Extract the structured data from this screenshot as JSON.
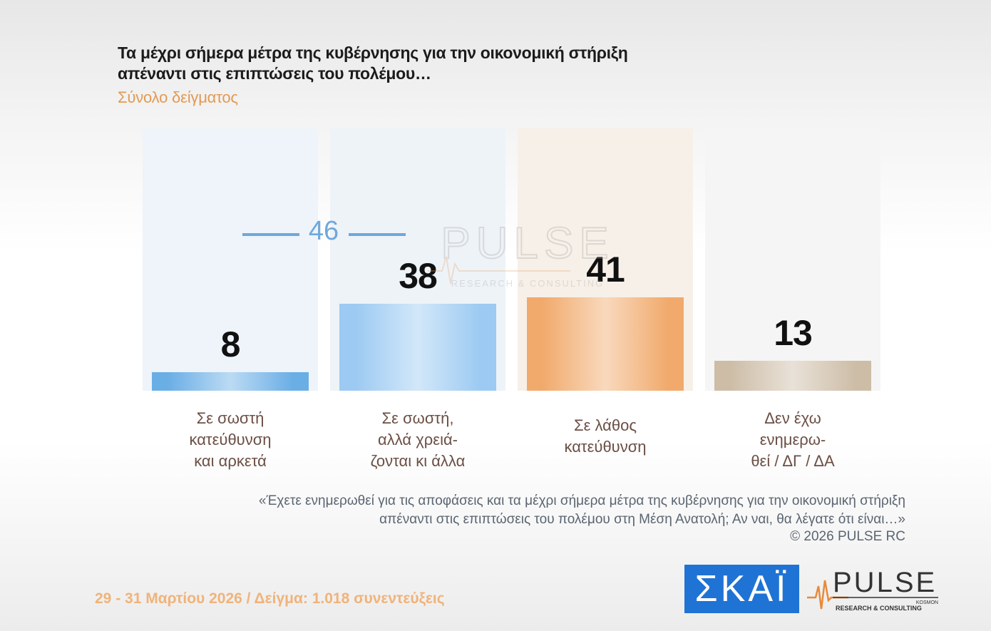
{
  "title_lines": [
    "Τα μέχρι σήμερα μέτρα της κυβέρνησης για την οικονομική στήριξη",
    "απέναντι στις επιπτώσεις του πολέμου…"
  ],
  "subtitle": "Σύνολο δείγματος",
  "chart_data": {
    "type": "bar",
    "categories": [
      "Σε σωστή κατεύθυνση και αρκετά",
      "Σε σωστή, αλλά χρειάζονται κι άλλα",
      "Σε λάθος κατεύθυνση",
      "Δεν έχω ενημερωθεί / ΔΓ / ΔΑ"
    ],
    "category_label_lines": [
      [
        "Σε σωστή",
        "κατεύθυνση",
        "και αρκετά"
      ],
      [
        "Σε σωστή,",
        "αλλά χρειά-",
        "ζονται κι άλλα"
      ],
      [
        "Σε λάθος",
        "κατεύθυνση"
      ],
      [
        "Δεν έχω",
        "ενημερω-",
        "θεί / ΔΓ / ΔΑ"
      ]
    ],
    "values": [
      8,
      38,
      41,
      13
    ],
    "value_labels": [
      "8",
      "38",
      "41",
      "13"
    ],
    "bar_colors": [
      "#6aaee6",
      "#9ccaf2",
      "#f1aa6c",
      "#cdbda7"
    ],
    "column_bg_colors": [
      "#eef4f9",
      "#eef3f8",
      "#f7f0e8",
      "#f5f5f5"
    ],
    "annotation": {
      "label": "46",
      "spans_categories": [
        0,
        1
      ],
      "color": "#6fa8dc"
    },
    "ylim": [
      0,
      120
    ]
  },
  "watermark": {
    "brand": "PULSE",
    "tagline": "RESEARCH & CONSULTING"
  },
  "question_lines": [
    "«Έχετε ενημερωθεί για τις αποφάσεις και τα μέχρι σήμερα  μέτρα της κυβέρνησης για την οικονομική στήριξη",
    "απέναντι στις επιπτώσεις του πολέμου στη Μέση Ανατολή; Αν ναι, θα λέγατε ότι είναι…»"
  ],
  "copyright": "©  2026  PULSE RC",
  "footer": "29 - 31  Μαρτίου 2026  /  Δείγμα:  1.018 συνεντεύξεις",
  "logos": {
    "skai": "ΣΚΑΪ",
    "pulse": "PULSE",
    "pulse_sub": "RESEARCH & CONSULTING",
    "pulse_small": "KOSMON"
  }
}
